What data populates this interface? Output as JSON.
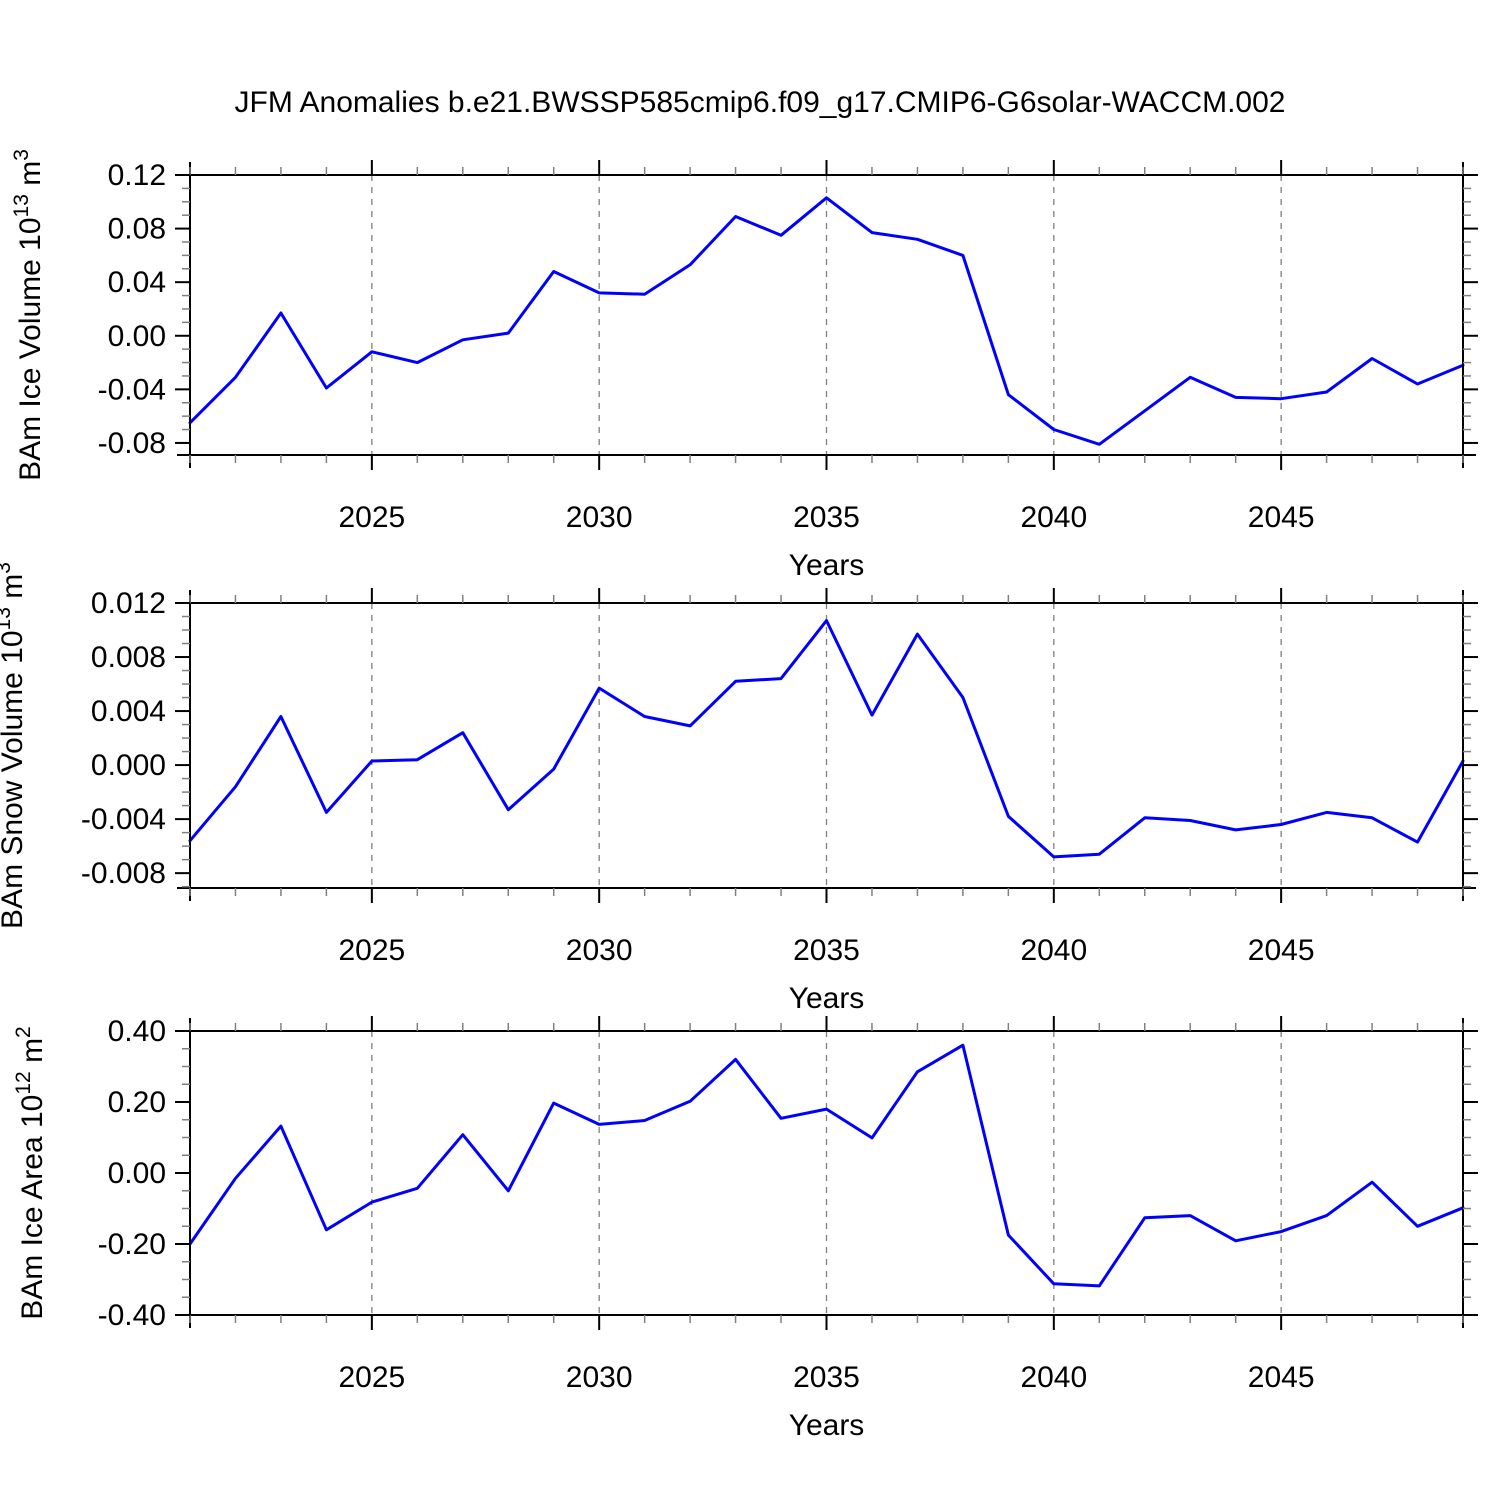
{
  "title": "JFM Anomalies b.e21.BWSSP585cmip6.f09_g17.CMIP6-G6solar-WACCM.002",
  "colors": {
    "line": "#0000ff",
    "axis": "#000000",
    "grid": "#808080",
    "minor_tick": "#808080",
    "text": "#000000",
    "background": "#ffffff"
  },
  "x_years": [
    2021,
    2022,
    2023,
    2024,
    2025,
    2026,
    2027,
    2028,
    2029,
    2030,
    2031,
    2032,
    2033,
    2034,
    2035,
    2036,
    2037,
    2038,
    2039,
    2040,
    2041,
    2042,
    2043,
    2044,
    2045,
    2046,
    2047,
    2048,
    2049
  ],
  "chart_data": [
    {
      "type": "line",
      "name": "bam-ice-volume",
      "ylabel_segments": [
        {
          "t": "BAm Ice Volume 10"
        },
        {
          "t": "13",
          "sup": true
        },
        {
          "t": " m"
        },
        {
          "t": "3",
          "sup": true
        }
      ],
      "xlabel": "Years",
      "xlim": [
        2021,
        2049
      ],
      "ylim": [
        -0.089,
        0.12
      ],
      "xticks": [
        2025,
        2030,
        2035,
        2040,
        2045
      ],
      "xtick_labels": [
        "2025",
        "2030",
        "2035",
        "2040",
        "2045"
      ],
      "xminor_step": 1,
      "yticks": [
        0.12,
        0.08,
        0.04,
        0.0,
        -0.04,
        -0.08
      ],
      "ytick_labels": [
        "0.12",
        "0.08",
        "0.04",
        "0.00",
        "-0.04",
        "-0.08"
      ],
      "yminor_step": 0.01,
      "grid": "vertical-dashed",
      "values": [
        -0.065,
        -0.031,
        0.017,
        -0.039,
        -0.012,
        -0.02,
        -0.003,
        0.002,
        0.048,
        0.032,
        0.031,
        0.053,
        0.089,
        0.075,
        0.103,
        0.077,
        0.072,
        0.06,
        -0.044,
        -0.07,
        -0.081,
        -0.056,
        -0.031,
        -0.046,
        -0.047,
        -0.042,
        -0.017,
        -0.036,
        -0.022
      ]
    },
    {
      "type": "line",
      "name": "bam-snow-volume",
      "ylabel_segments": [
        {
          "t": "BAm Snow Volume 10"
        },
        {
          "t": "13",
          "sup": true
        },
        {
          "t": " m"
        },
        {
          "t": "3",
          "sup": true
        }
      ],
      "xlabel": "Years",
      "xlim": [
        2021,
        2049
      ],
      "ylim": [
        -0.0091,
        0.012
      ],
      "xticks": [
        2025,
        2030,
        2035,
        2040,
        2045
      ],
      "xtick_labels": [
        "2025",
        "2030",
        "2035",
        "2040",
        "2045"
      ],
      "xminor_step": 1,
      "yticks": [
        0.012,
        0.008,
        0.004,
        0.0,
        -0.004,
        -0.008
      ],
      "ytick_labels": [
        "0.012",
        "0.008",
        "0.004",
        "0.000",
        "-0.004",
        "-0.008"
      ],
      "yminor_step": 0.001,
      "grid": "vertical-dashed",
      "values": [
        -0.0056,
        -0.0016,
        0.0036,
        -0.0035,
        0.0003,
        0.0004,
        0.0024,
        -0.0033,
        -0.0003,
        0.0057,
        0.0036,
        0.0029,
        0.0062,
        0.0064,
        0.0107,
        0.0037,
        0.0097,
        0.005,
        -0.0038,
        -0.0068,
        -0.0066,
        -0.0039,
        -0.0041,
        -0.0048,
        -0.0044,
        -0.0035,
        -0.0039,
        -0.0057,
        0.0003
      ]
    },
    {
      "type": "line",
      "name": "bam-ice-area",
      "ylabel_segments": [
        {
          "t": "BAm Ice Area 10"
        },
        {
          "t": "12",
          "sup": true
        },
        {
          "t": " m"
        },
        {
          "t": "2",
          "sup": true
        }
      ],
      "xlabel": "Years",
      "xlim": [
        2021,
        2049
      ],
      "ylim": [
        -0.4,
        0.4
      ],
      "xticks": [
        2025,
        2030,
        2035,
        2040,
        2045
      ],
      "xtick_labels": [
        "2025",
        "2030",
        "2035",
        "2040",
        "2045"
      ],
      "xminor_step": 1,
      "yticks": [
        0.4,
        0.2,
        0.0,
        -0.2,
        -0.4
      ],
      "ytick_labels": [
        "0.40",
        "0.20",
        "0.00",
        "-0.20",
        "-0.40"
      ],
      "yminor_step": 0.05,
      "grid": "vertical-dashed",
      "values": [
        -0.2,
        -0.015,
        0.132,
        -0.16,
        -0.082,
        -0.043,
        0.108,
        -0.05,
        0.197,
        0.137,
        0.148,
        0.202,
        0.32,
        0.154,
        0.18,
        0.099,
        0.285,
        0.36,
        -0.175,
        -0.312,
        -0.318,
        -0.126,
        -0.12,
        -0.191,
        -0.165,
        -0.12,
        -0.026,
        -0.15,
        -0.098
      ]
    }
  ]
}
